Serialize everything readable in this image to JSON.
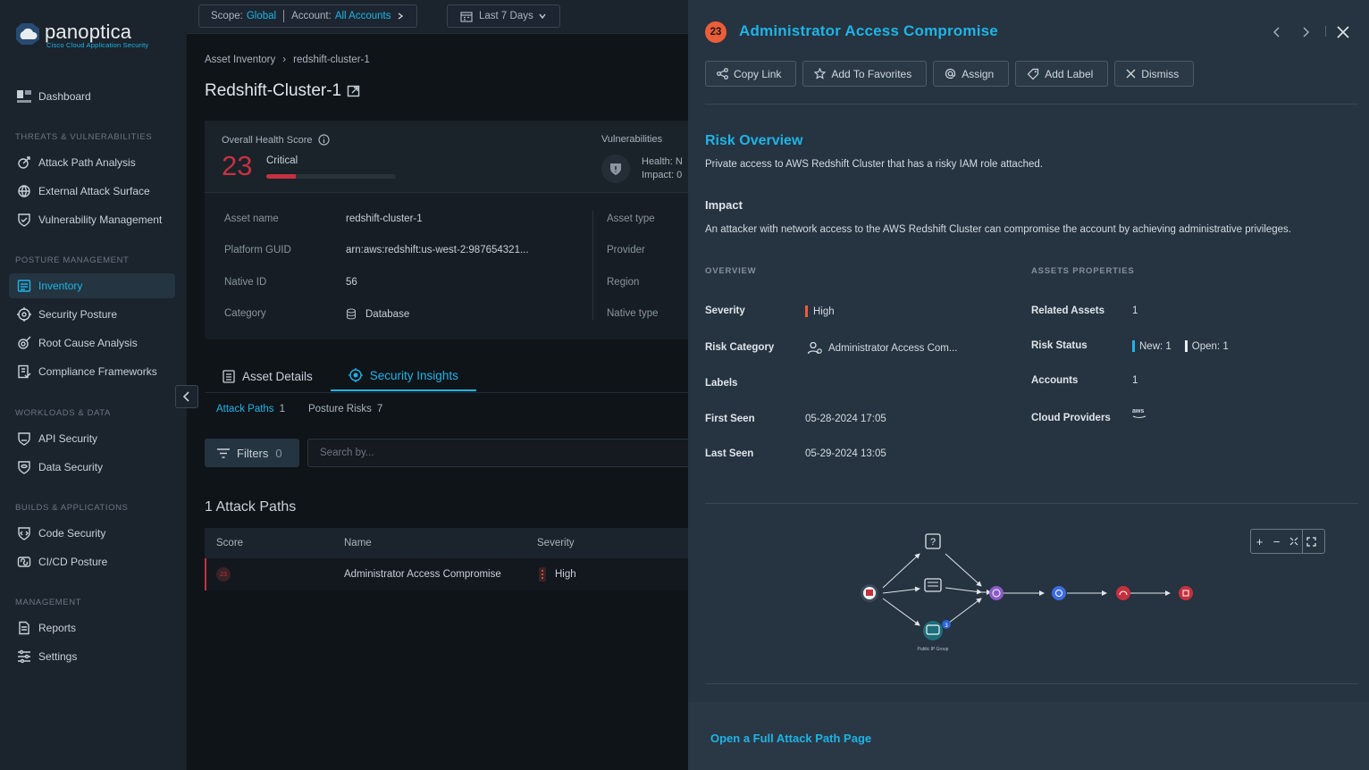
{
  "brand": {
    "name": "panoptica",
    "subtitle": "Cisco Cloud Application Security"
  },
  "sidebar": {
    "dashboard": "Dashboard",
    "sections": [
      {
        "title": "THREATS & VULNERABILITIES",
        "items": [
          "Attack Path Analysis",
          "External Attack Surface",
          "Vulnerability Management"
        ]
      },
      {
        "title": "POSTURE MANAGEMENT",
        "items": [
          "Inventory",
          "Security Posture",
          "Root Cause Analysis",
          "Compliance Frameworks"
        ]
      },
      {
        "title": "WORKLOADS & DATA",
        "items": [
          "API Security",
          "Data Security"
        ]
      },
      {
        "title": "BUILDS & APPLICATIONS",
        "items": [
          "Code Security",
          "CI/CD Posture"
        ]
      },
      {
        "title": "MANAGEMENT",
        "items": [
          "Reports",
          "Settings"
        ]
      }
    ],
    "active_item": "Inventory"
  },
  "topbar": {
    "scope_label": "Scope:",
    "scope_value": "Global",
    "account_label": "Account:",
    "account_value": "All Accounts",
    "date_range": "Last 7 Days"
  },
  "breadcrumb": {
    "root": "Asset Inventory",
    "current": "redshift-cluster-1"
  },
  "page_title": "Redshift-Cluster-1",
  "health": {
    "label": "Overall Health Score",
    "score": "23",
    "level": "Critical",
    "bar_fraction": 0.23,
    "vuln_label": "Vulnerabilities",
    "vuln_health": "Health: N",
    "vuln_impact": "Impact: 0"
  },
  "asset_props": {
    "left": [
      {
        "key": "Asset name",
        "value": "redshift-cluster-1"
      },
      {
        "key": "Platform GUID",
        "value": "arn:aws:redshift:us-west-2:987654321..."
      },
      {
        "key": "Native ID",
        "value": "56"
      },
      {
        "key": "Category",
        "value": "Database"
      }
    ],
    "right": [
      "Asset type",
      "Provider",
      "Region",
      "Native type"
    ]
  },
  "tabs": {
    "asset_details": "Asset Details",
    "security_insights": "Security Insights"
  },
  "subtabs": [
    {
      "label": "Attack Paths",
      "count": "1"
    },
    {
      "label": "Posture Risks",
      "count": "7"
    }
  ],
  "filters": {
    "label": "Filters",
    "count": "0",
    "search_placeholder": "Search by..."
  },
  "attack_paths": {
    "count_title": "1 Attack Paths",
    "columns": [
      "Score",
      "Name",
      "Severity"
    ],
    "rows": [
      {
        "score": "23",
        "name": "Administrator Access Compromise",
        "severity": "High"
      }
    ]
  },
  "panel": {
    "badge": "23",
    "title": "Administrator Access Compromise",
    "actions": [
      "Copy Link",
      "Add To Favorites",
      "Assign",
      "Add Label",
      "Dismiss"
    ],
    "risk_overview_title": "Risk Overview",
    "risk_overview_text": "Private access to AWS Redshift Cluster that has a risky IAM role attached.",
    "impact_title": "Impact",
    "impact_text": "An attacker with network access to the AWS Redshift Cluster can compromise the account by achieving administrative privileges.",
    "overview_heading": "OVERVIEW",
    "overview": {
      "severity_label": "Severity",
      "severity_value": "High",
      "risk_category_label": "Risk Category",
      "risk_category_value": "Administrator Access Com...",
      "labels_label": "Labels",
      "first_seen_label": "First Seen",
      "first_seen_value": "05-28-2024 17:05",
      "last_seen_label": "Last Seen",
      "last_seen_value": "05-29-2024 13:05"
    },
    "assets_heading": "ASSETS PROPERTIES",
    "assets": {
      "related_label": "Related Assets",
      "related_value": "1",
      "risk_status_label": "Risk Status",
      "risk_new": "New: 1",
      "risk_open": "Open: 1",
      "accounts_label": "Accounts",
      "accounts_value": "1",
      "cloud_label": "Cloud Providers",
      "cloud_value": "aws"
    },
    "graph_node_label": "Public IP Group",
    "graph_badge": "3",
    "footer_link": "Open a Full Attack Path Page"
  },
  "colors": {
    "accent": "#1eb4e6",
    "critical": "#c5313f",
    "high": "#ec5d3a",
    "risk_new": "#1eb4e6",
    "risk_open": "#e8edf2"
  }
}
